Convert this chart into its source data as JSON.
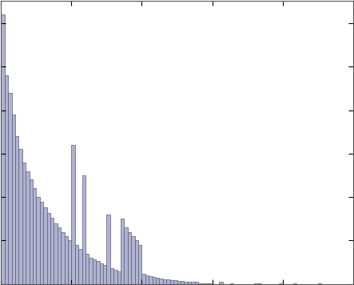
{
  "bar_color": "#b0b4d0",
  "edge_color": "#5a5a7a",
  "bar_heights": [
    310,
    240,
    220,
    195,
    170,
    155,
    140,
    130,
    120,
    110,
    100,
    95,
    88,
    82,
    76,
    70,
    65,
    60,
    55,
    50,
    160,
    45,
    40,
    125,
    35,
    30,
    28,
    26,
    24,
    22,
    80,
    18,
    16,
    14,
    75,
    65,
    60,
    55,
    50,
    45,
    12,
    10,
    9,
    8,
    7,
    6,
    5,
    5,
    4,
    4,
    3,
    3,
    2,
    2,
    2,
    2,
    1,
    1,
    1,
    1,
    0,
    0,
    2,
    0,
    0,
    1,
    0,
    0,
    0,
    0,
    0,
    0,
    1,
    1,
    0,
    0,
    0,
    0,
    0,
    1,
    0,
    0,
    0,
    1,
    0,
    0,
    0,
    0,
    0,
    0,
    1,
    0,
    0,
    0,
    0,
    0,
    0,
    0,
    0,
    0
  ],
  "xlim": [
    0,
    100
  ],
  "figsize": [
    4.43,
    3.56
  ],
  "dpi": 100
}
